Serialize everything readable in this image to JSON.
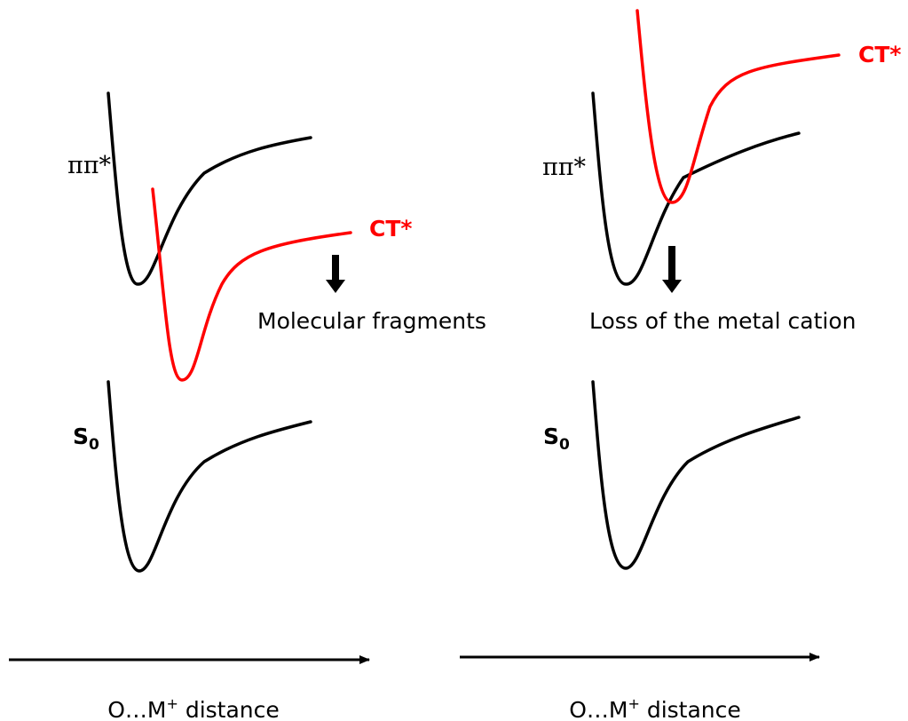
{
  "panels": [
    {
      "excited_label": "ππ*",
      "ct_label": "CT*",
      "outcome": "Molecular fragments",
      "ground_label": {
        "main": "S",
        "sub": "0"
      },
      "axis_label": {
        "left": "O…M",
        "sup": "+",
        "right": " distance"
      }
    },
    {
      "excited_label": "ππ*",
      "ct_label": "CT*",
      "outcome": "Loss of the metal cation",
      "ground_label": {
        "main": "S",
        "sub": "0"
      },
      "axis_label": {
        "left": "O…M",
        "sup": "+",
        "right": " distance"
      }
    }
  ]
}
